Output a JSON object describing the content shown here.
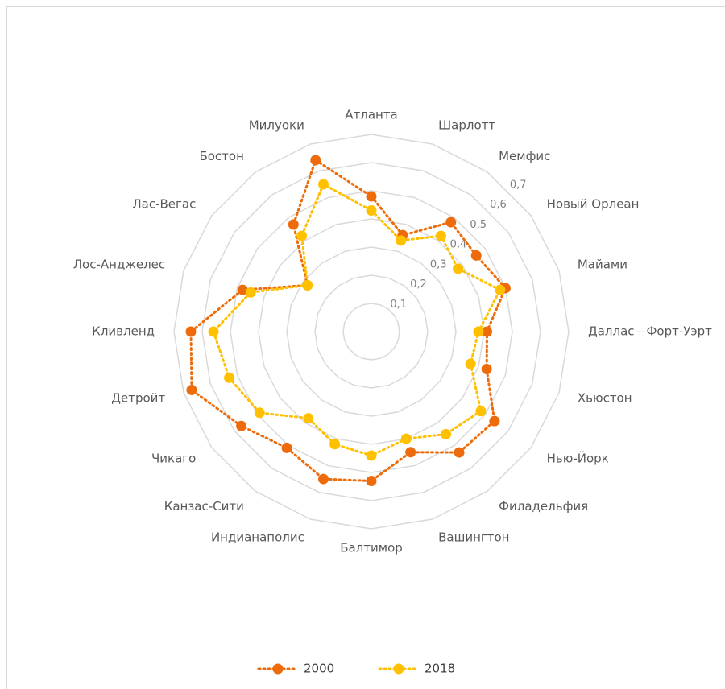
{
  "chart_data": {
    "type": "radar",
    "categories": [
      "Атланта",
      "Шарлотт",
      "Мемфис",
      "Новый Орлеан",
      "Майами",
      "Даллас—Форт-Уэрт",
      "Хьюстон",
      "Нью-Йорк",
      "Филадельфия",
      "Вашингтон",
      "Балтимор",
      "Индианаполис",
      "Канзас-Сити",
      "Чикаго",
      "Детройт",
      "Кливленд",
      "Лос-Анджелес",
      "Лас-Вегас",
      "Бостон",
      "Милуоки"
    ],
    "series": [
      {
        "name": "2000",
        "color": "#ed6b0a",
        "values": [
          0.48,
          0.36,
          0.48,
          0.46,
          0.5,
          0.41,
          0.43,
          0.54,
          0.53,
          0.45,
          0.53,
          0.55,
          0.51,
          0.57,
          0.67,
          0.64,
          0.48,
          0.28,
          0.47,
          0.64
        ]
      },
      {
        "name": "2018",
        "color": "#ffc000",
        "values": [
          0.43,
          0.34,
          0.42,
          0.38,
          0.48,
          0.38,
          0.37,
          0.48,
          0.45,
          0.4,
          0.44,
          0.42,
          0.38,
          0.49,
          0.53,
          0.56,
          0.45,
          0.28,
          0.42,
          0.55
        ]
      }
    ],
    "ylim": [
      0,
      0.7
    ],
    "yticks": [
      {
        "value": 0.1,
        "label": "0,1"
      },
      {
        "value": 0.2,
        "label": "0,2"
      },
      {
        "value": 0.3,
        "label": "0,3"
      },
      {
        "value": 0.4,
        "label": "0,4"
      },
      {
        "value": 0.5,
        "label": "0,5"
      },
      {
        "value": 0.6,
        "label": "0,6"
      },
      {
        "value": 0.7,
        "label": "0,7"
      }
    ],
    "grid": true,
    "legend": "bottom"
  }
}
